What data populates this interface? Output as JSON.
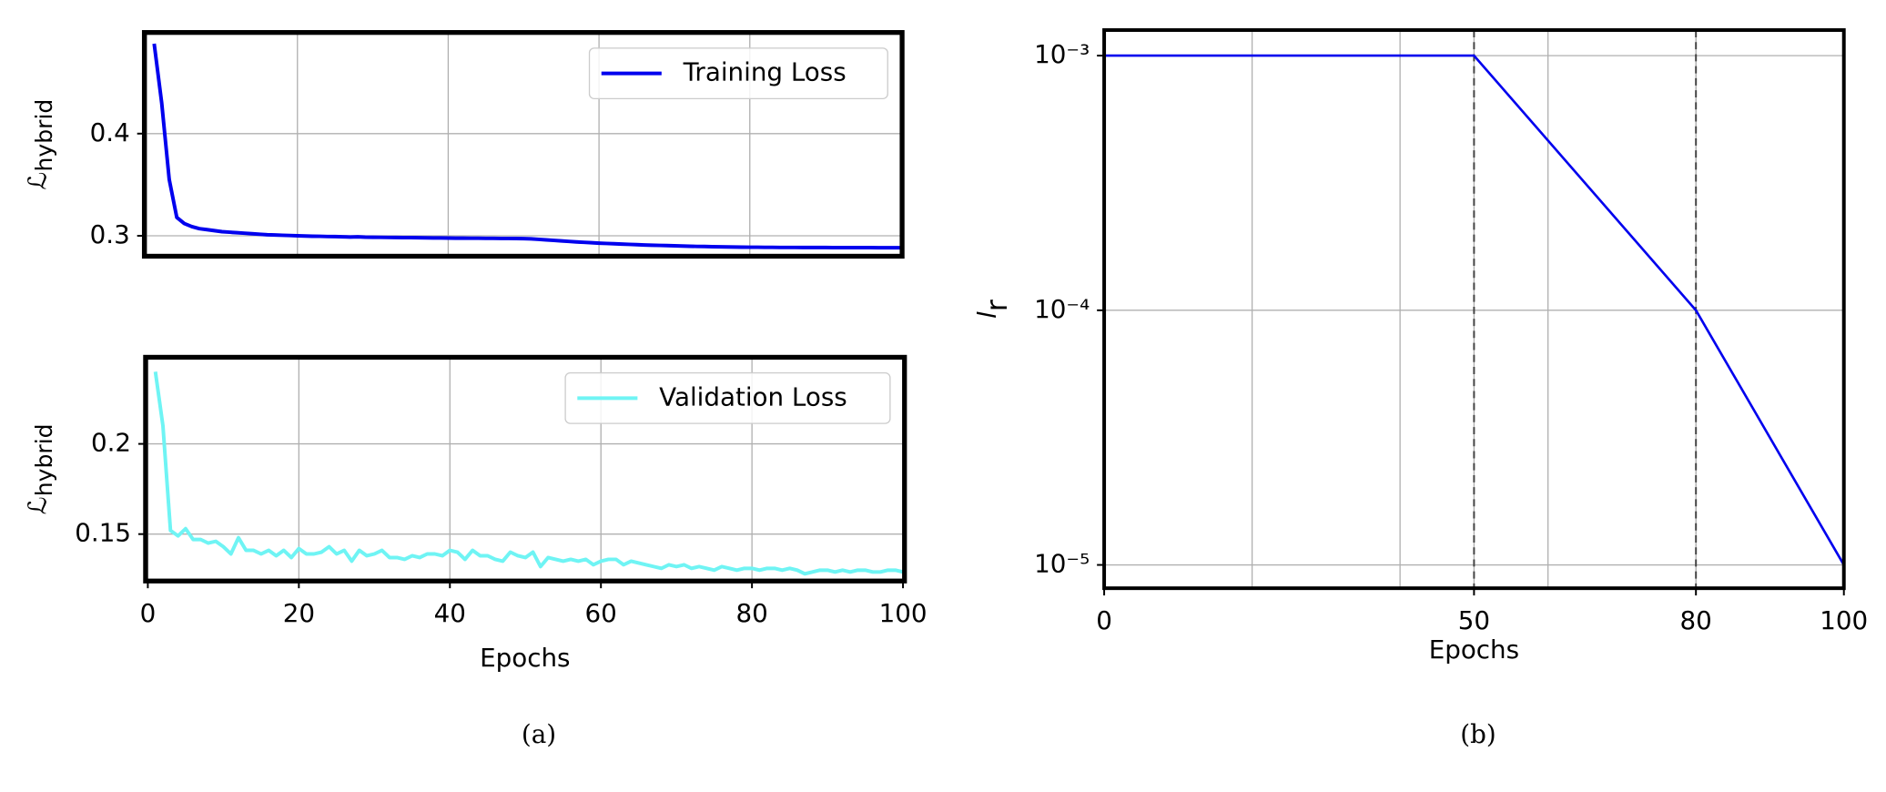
{
  "chart_data": [
    {
      "type": "line",
      "ylabel": "ℒ",
      "ylabel_sub": "hybrid",
      "x": [
        1,
        2,
        3,
        4,
        5,
        6,
        7,
        8,
        9,
        10,
        11,
        12,
        13,
        14,
        15,
        16,
        17,
        18,
        19,
        20,
        21,
        22,
        23,
        24,
        25,
        26,
        27,
        28,
        29,
        30,
        31,
        32,
        33,
        34,
        35,
        36,
        37,
        38,
        39,
        40,
        41,
        42,
        43,
        44,
        45,
        46,
        47,
        48,
        49,
        50,
        51,
        52,
        53,
        54,
        55,
        56,
        57,
        58,
        59,
        60,
        61,
        62,
        63,
        64,
        65,
        66,
        67,
        68,
        69,
        70,
        71,
        72,
        73,
        74,
        75,
        76,
        77,
        78,
        79,
        80,
        81,
        82,
        83,
        84,
        85,
        86,
        87,
        88,
        89,
        90,
        91,
        92,
        93,
        94,
        95,
        96,
        97,
        98,
        99,
        100
      ],
      "series": [
        {
          "name": "Training Loss",
          "color": "#0000ee",
          "values": [
            0.488,
            0.43,
            0.355,
            0.318,
            0.312,
            0.309,
            0.307,
            0.306,
            0.305,
            0.304,
            0.3035,
            0.303,
            0.3025,
            0.302,
            0.3015,
            0.301,
            0.3008,
            0.3005,
            0.3003,
            0.3,
            0.2998,
            0.2996,
            0.2995,
            0.2993,
            0.2992,
            0.299,
            0.2988,
            0.299,
            0.2987,
            0.2986,
            0.2985,
            0.2984,
            0.2983,
            0.2982,
            0.2982,
            0.2981,
            0.298,
            0.2979,
            0.2979,
            0.2978,
            0.2977,
            0.2977,
            0.2976,
            0.2976,
            0.2975,
            0.2975,
            0.2974,
            0.2974,
            0.2973,
            0.2972,
            0.297,
            0.2965,
            0.296,
            0.2955,
            0.295,
            0.2945,
            0.294,
            0.2936,
            0.2932,
            0.2928,
            0.2925,
            0.2922,
            0.2919,
            0.2916,
            0.2913,
            0.291,
            0.2908,
            0.2906,
            0.2904,
            0.2902,
            0.29,
            0.2898,
            0.2896,
            0.2895,
            0.2893,
            0.2892,
            0.2891,
            0.289,
            0.2889,
            0.2888,
            0.2888,
            0.2887,
            0.2887,
            0.2886,
            0.2886,
            0.2886,
            0.2885,
            0.2885,
            0.2885,
            0.2885,
            0.2884,
            0.2884,
            0.2884,
            0.2884,
            0.2884,
            0.2884,
            0.2883,
            0.2883,
            0.2883,
            0.2883
          ]
        }
      ],
      "xlim": [
        -0.3,
        100.2
      ],
      "ylim": [
        0.28,
        0.499
      ],
      "yticks": [
        0.3,
        0.4
      ],
      "xgrid": [
        0,
        20,
        40,
        60,
        80,
        100
      ],
      "grid": true,
      "legend": "upper right"
    },
    {
      "type": "line",
      "ylabel": "ℒ",
      "ylabel_sub": "hybrid",
      "xlabel": "Epochs",
      "caption": "(a)",
      "x": [
        1,
        2,
        3,
        4,
        5,
        6,
        7,
        8,
        9,
        10,
        11,
        12,
        13,
        14,
        15,
        16,
        17,
        18,
        19,
        20,
        21,
        22,
        23,
        24,
        25,
        26,
        27,
        28,
        29,
        30,
        31,
        32,
        33,
        34,
        35,
        36,
        37,
        38,
        39,
        40,
        41,
        42,
        43,
        44,
        45,
        46,
        47,
        48,
        49,
        50,
        51,
        52,
        53,
        54,
        55,
        56,
        57,
        58,
        59,
        60,
        61,
        62,
        63,
        64,
        65,
        66,
        67,
        68,
        69,
        70,
        71,
        72,
        73,
        74,
        75,
        76,
        77,
        78,
        79,
        80,
        81,
        82,
        83,
        84,
        85,
        86,
        87,
        88,
        89,
        90,
        91,
        92,
        93,
        94,
        95,
        96,
        97,
        98,
        99,
        100
      ],
      "series": [
        {
          "name": "Validation Loss",
          "color": "#6ff4f4",
          "values": [
            0.24,
            0.21,
            0.152,
            0.149,
            0.153,
            0.147,
            0.147,
            0.145,
            0.146,
            0.143,
            0.139,
            0.148,
            0.141,
            0.141,
            0.139,
            0.141,
            0.138,
            0.141,
            0.137,
            0.142,
            0.139,
            0.139,
            0.14,
            0.143,
            0.139,
            0.141,
            0.135,
            0.141,
            0.138,
            0.139,
            0.141,
            0.137,
            0.137,
            0.136,
            0.138,
            0.137,
            0.139,
            0.139,
            0.138,
            0.141,
            0.14,
            0.136,
            0.141,
            0.138,
            0.138,
            0.136,
            0.135,
            0.14,
            0.138,
            0.137,
            0.14,
            0.132,
            0.137,
            0.136,
            0.135,
            0.136,
            0.135,
            0.136,
            0.133,
            0.135,
            0.136,
            0.136,
            0.133,
            0.135,
            0.134,
            0.133,
            0.132,
            0.131,
            0.133,
            0.132,
            0.133,
            0.131,
            0.132,
            0.131,
            0.13,
            0.132,
            0.131,
            0.13,
            0.131,
            0.131,
            0.13,
            0.131,
            0.131,
            0.13,
            0.131,
            0.13,
            0.128,
            0.129,
            0.13,
            0.13,
            0.129,
            0.13,
            0.129,
            0.13,
            0.13,
            0.129,
            0.129,
            0.13,
            0.13,
            0.129
          ]
        }
      ],
      "xlim": [
        -0.3,
        100.2
      ],
      "ylim": [
        0.124,
        0.248
      ],
      "xticks": [
        0,
        20,
        40,
        60,
        80,
        100
      ],
      "yticks": [
        0.15,
        0.2
      ],
      "grid": true,
      "legend": "upper right"
    },
    {
      "type": "line",
      "ylabel": "l",
      "ylabel_sub": "r",
      "xlabel": "Epochs",
      "caption": "(b)",
      "x": [
        0,
        50,
        80,
        100
      ],
      "series": [
        {
          "color": "#0000ee",
          "values": [
            0.001,
            0.001,
            0.0001,
            1e-05
          ]
        }
      ],
      "xlim": [
        0,
        100
      ],
      "ylim": [
        8.1e-06,
        0.00126
      ],
      "log_y": true,
      "xticks": [
        0,
        50,
        80,
        100
      ],
      "xgrid": [
        20,
        40,
        60,
        80
      ],
      "yticks": [
        {
          "value": 0.001,
          "label": "10⁻³"
        },
        {
          "value": 0.0001,
          "label": "10⁻⁴"
        },
        {
          "value": 1e-05,
          "label": "10⁻⁵"
        }
      ],
      "vlines": [
        50,
        80
      ],
      "grid": true
    }
  ]
}
